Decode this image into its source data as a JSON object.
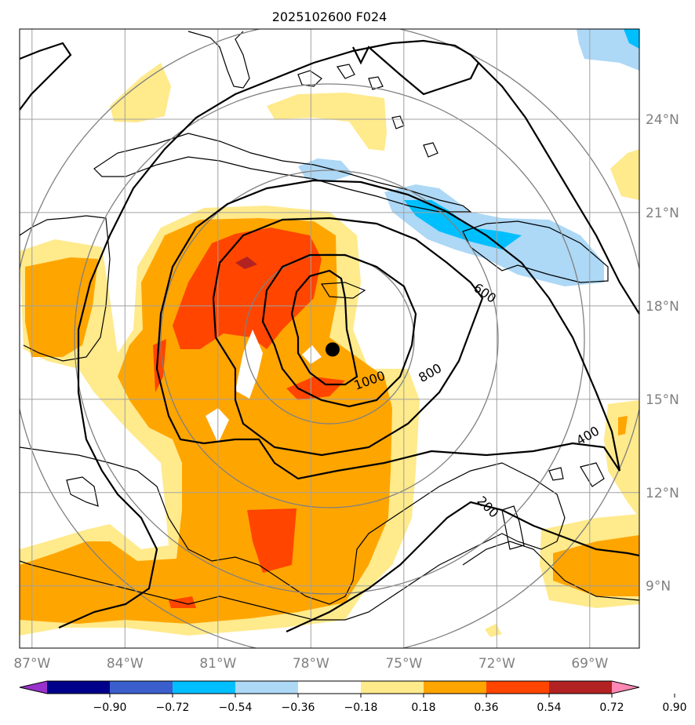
{
  "chart_data": {
    "type": "heatmap",
    "title": "2025102600 F024",
    "x_ticks": [
      "87°W",
      "84°W",
      "81°W",
      "78°W",
      "75°W",
      "72°W",
      "69°W"
    ],
    "y_ticks": [
      "24°N",
      "21°N",
      "18°N",
      "15°N",
      "12°N",
      "9°N"
    ],
    "xlim_lon": [
      -87.4,
      -67.4
    ],
    "ylim_lat": [
      7.0,
      26.9
    ],
    "grid": true,
    "storm_center": {
      "lon": -77.3,
      "lat": 16.6
    },
    "contour_labels": [
      "1000",
      "800",
      "600",
      "400",
      "200"
    ],
    "colorbar": {
      "orientation": "horizontal",
      "extend": "both",
      "tick_labels": [
        "−0.90",
        "−0.72",
        "−0.54",
        "−0.36",
        "−0.18",
        "0.18",
        "0.36",
        "0.54",
        "0.72",
        "0.90"
      ],
      "colors": [
        "#9932cc",
        "#00008b",
        "#3a5fcd",
        "#00bfff",
        "#add8f6",
        "#ffffff",
        "#ffea8c",
        "#ffa500",
        "#ff4500",
        "#b22222",
        "#ff88b4"
      ]
    }
  }
}
